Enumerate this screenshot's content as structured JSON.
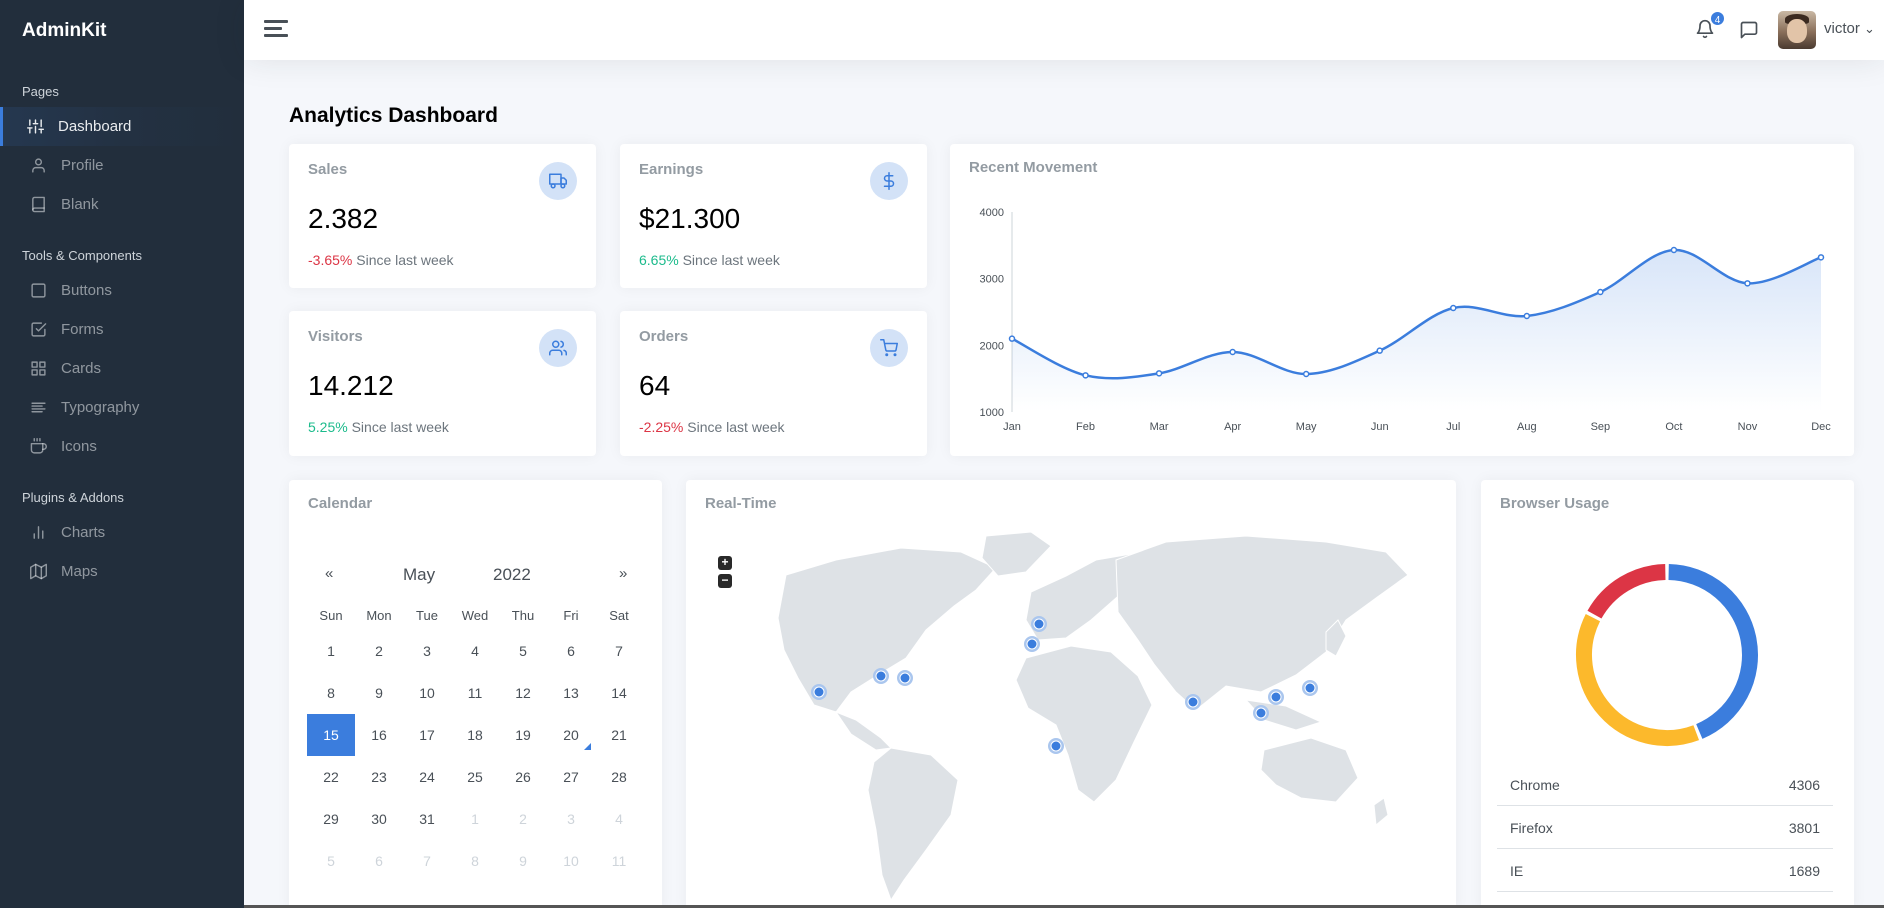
{
  "brand": "AdminKit",
  "sidebar": {
    "sections": [
      {
        "header": "Pages"
      },
      {
        "header": "Tools & Components"
      },
      {
        "header": "Plugins & Addons"
      }
    ],
    "items": [
      {
        "label": "Dashboard",
        "icon": "sliders-icon"
      },
      {
        "label": "Profile",
        "icon": "user-icon"
      },
      {
        "label": "Blank",
        "icon": "book-icon"
      },
      {
        "label": "Buttons",
        "icon": "square-icon"
      },
      {
        "label": "Forms",
        "icon": "check-square-icon"
      },
      {
        "label": "Cards",
        "icon": "grid-icon"
      },
      {
        "label": "Typography",
        "icon": "align-left-icon"
      },
      {
        "label": "Icons",
        "icon": "coffee-icon"
      },
      {
        "label": "Charts",
        "icon": "bar-chart-icon"
      },
      {
        "label": "Maps",
        "icon": "map-icon"
      }
    ]
  },
  "topbar": {
    "notification_count": "4",
    "username": "victor",
    "username_caret": "⌄"
  },
  "page": {
    "title_strong": "Analytics",
    "title_rest": " Dashboard"
  },
  "stats": [
    {
      "title": "Sales",
      "value": "2.382",
      "change": "-3.65%",
      "change_dir": "neg",
      "since": " Since last week",
      "icon": "truck-icon"
    },
    {
      "title": "Earnings",
      "value": "$21.300",
      "change": "6.65%",
      "change_dir": "pos",
      "since": " Since last week",
      "icon": "dollar-icon"
    },
    {
      "title": "Visitors",
      "value": "14.212",
      "change": "5.25%",
      "change_dir": "pos",
      "since": " Since last week",
      "icon": "users-icon"
    },
    {
      "title": "Orders",
      "value": "64",
      "change": "-2.25%",
      "change_dir": "neg",
      "since": " Since last week",
      "icon": "cart-icon"
    }
  ],
  "movement": {
    "title": "Recent Movement"
  },
  "chart_data": {
    "type": "area",
    "title": "Recent Movement",
    "categories": [
      "Jan",
      "Feb",
      "Mar",
      "Apr",
      "May",
      "Jun",
      "Jul",
      "Aug",
      "Sep",
      "Oct",
      "Nov",
      "Dec"
    ],
    "series": [
      {
        "values": [
          2100,
          1550,
          1580,
          1900,
          1570,
          1920,
          2560,
          2440,
          2800,
          3430,
          2930,
          3320
        ]
      }
    ],
    "ylim": [
      1000,
      4000
    ],
    "yticks": [
      "1000",
      "2000",
      "3000",
      "4000"
    ],
    "color": "#3b7ddd"
  },
  "calendar": {
    "title": "Calendar",
    "prev": "«",
    "next": "»",
    "month": "May",
    "year": "2022",
    "weekdays": [
      "Sun",
      "Mon",
      "Tue",
      "Wed",
      "Thu",
      "Fri",
      "Sat"
    ],
    "weeks": [
      [
        "1",
        "2",
        "3",
        "4",
        "5",
        "6",
        "7"
      ],
      [
        "8",
        "9",
        "10",
        "11",
        "12",
        "13",
        "14"
      ],
      [
        "15",
        "16",
        "17",
        "18",
        "19",
        "20",
        "21"
      ],
      [
        "22",
        "23",
        "24",
        "25",
        "26",
        "27",
        "28"
      ],
      [
        "29",
        "30",
        "31",
        "1",
        "2",
        "3",
        "4"
      ],
      [
        "5",
        "6",
        "7",
        "8",
        "9",
        "10",
        "11"
      ]
    ],
    "selected": "15",
    "marked": "20"
  },
  "realtime": {
    "title": "Real-Time",
    "zoom_in": "+",
    "zoom_out": "−"
  },
  "browser": {
    "title": "Browser Usage",
    "rows": [
      {
        "name": "Chrome",
        "value": "4306",
        "color": "#3b7ddd"
      },
      {
        "name": "Firefox",
        "value": "3801",
        "color": "#fcb92c"
      },
      {
        "name": "IE",
        "value": "1689",
        "color": "#dc3545"
      }
    ]
  }
}
